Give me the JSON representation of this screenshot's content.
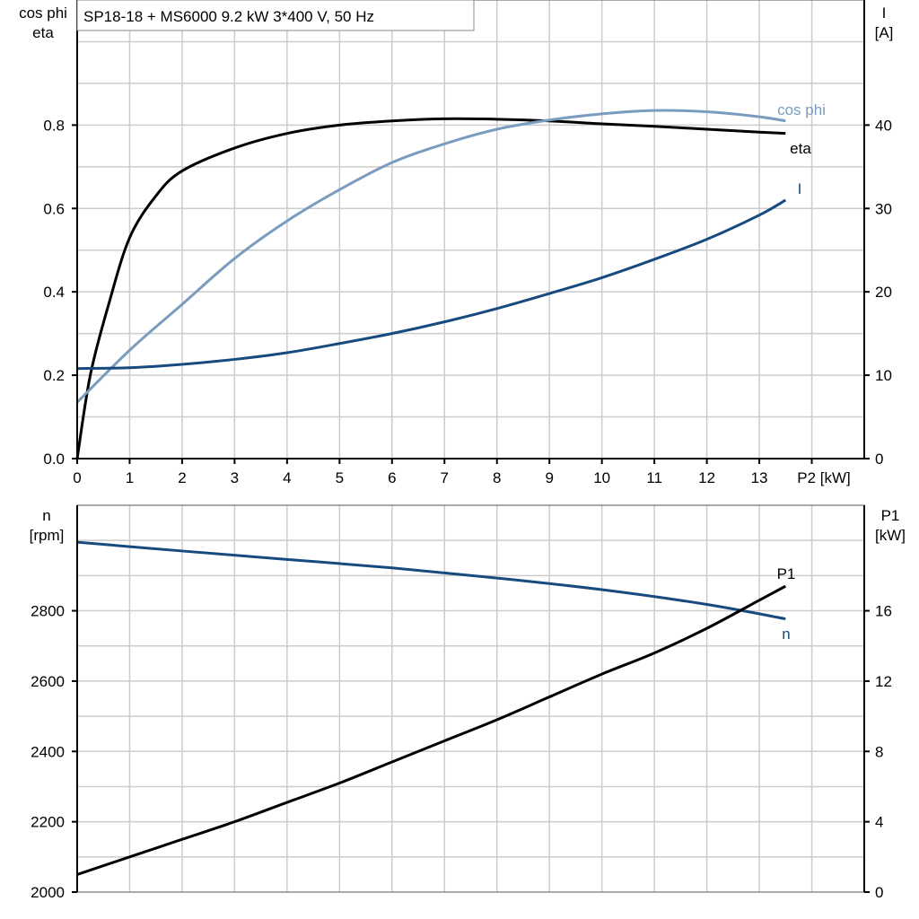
{
  "title": "SP18-18 + MS6000   9.2 kW   3*400 V, 50 Hz",
  "colors": {
    "eta": "#000000",
    "cos_phi": "#7a9cbf",
    "I": "#174b80",
    "n": "#174b80",
    "P1": "#000000",
    "grid": "#cccccc"
  },
  "chart_data": [
    {
      "type": "line",
      "xlabel": "P2 [kW]",
      "xlim": [
        0,
        15
      ],
      "xticks": [
        0,
        1,
        2,
        3,
        4,
        5,
        6,
        7,
        8,
        9,
        10,
        11,
        12,
        13
      ],
      "ylabel_left": [
        "cos phi",
        "eta"
      ],
      "ylim_left": [
        0,
        1.1
      ],
      "yticks_left": [
        "0.0",
        "0.2",
        "0.4",
        "0.6",
        "0.8"
      ],
      "ylabel_right": [
        "I",
        "[A]"
      ],
      "ylim_right": [
        0,
        55
      ],
      "yticks_right": [
        "0",
        "10",
        "20",
        "30",
        "40"
      ],
      "grid": true,
      "series": [
        {
          "name": "eta",
          "axis": "left",
          "color": "#000000",
          "x": [
            0,
            0.25,
            0.6,
            1,
            1.5,
            2,
            3,
            4,
            5,
            6,
            7,
            8,
            9,
            10,
            11,
            12,
            13,
            13.5
          ],
          "y": [
            0,
            0.2,
            0.37,
            0.53,
            0.63,
            0.69,
            0.745,
            0.78,
            0.8,
            0.81,
            0.815,
            0.814,
            0.81,
            0.803,
            0.797,
            0.79,
            0.783,
            0.78
          ]
        },
        {
          "name": "cos phi",
          "axis": "left",
          "color": "#7a9cbf",
          "x": [
            0,
            1,
            2,
            3,
            4,
            5,
            6,
            7,
            8,
            9,
            10,
            11,
            12,
            13,
            13.5
          ],
          "y": [
            0.135,
            0.26,
            0.37,
            0.48,
            0.57,
            0.645,
            0.71,
            0.755,
            0.79,
            0.812,
            0.827,
            0.835,
            0.832,
            0.82,
            0.81
          ]
        },
        {
          "name": "I",
          "axis": "right",
          "color": "#174b80",
          "x": [
            0,
            1,
            2,
            3,
            4,
            5,
            6,
            7,
            8,
            9,
            10,
            11,
            12,
            13,
            13.5
          ],
          "y": [
            10.8,
            10.9,
            11.3,
            11.9,
            12.7,
            13.8,
            15,
            16.4,
            18,
            19.8,
            21.7,
            23.9,
            26.3,
            29.2,
            31
          ]
        }
      ]
    },
    {
      "type": "line",
      "xlim": [
        0,
        15
      ],
      "ylabel_left": [
        "n",
        "[rpm]"
      ],
      "ylim_left": [
        2000,
        3100
      ],
      "yticks_left": [
        "2000",
        "2200",
        "2400",
        "2600",
        "2800"
      ],
      "ylabel_right": [
        "P1",
        "[kW]"
      ],
      "ylim_right": [
        0,
        22
      ],
      "yticks_right": [
        "0",
        "4",
        "8",
        "12",
        "16"
      ],
      "grid": true,
      "series": [
        {
          "name": "n",
          "axis": "left",
          "color": "#174b80",
          "x": [
            0,
            2,
            4,
            6,
            8,
            10,
            12,
            13.5
          ],
          "y": [
            2995,
            2970,
            2946,
            2922,
            2893,
            2860,
            2818,
            2777
          ]
        },
        {
          "name": "P1",
          "axis": "right",
          "color": "#000000",
          "x": [
            0,
            1,
            2,
            3,
            4,
            5,
            6,
            7,
            8,
            9,
            10,
            11,
            12,
            13,
            13.5
          ],
          "y": [
            1.0,
            2.0,
            3.0,
            4.0,
            5.1,
            6.2,
            7.4,
            8.6,
            9.8,
            11.1,
            12.4,
            13.6,
            15.0,
            16.6,
            17.4
          ]
        }
      ]
    }
  ]
}
